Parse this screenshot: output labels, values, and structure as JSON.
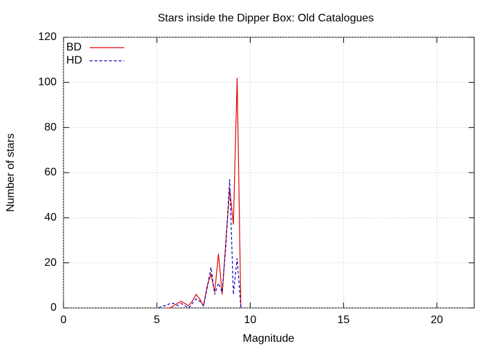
{
  "chart_data": {
    "type": "line",
    "title": "Stars inside the Dipper Box: Old Catalogues",
    "x_label": "Magnitude",
    "y_label": "Number of stars",
    "xlim": [
      0,
      22
    ],
    "xticks": [
      0,
      5,
      10,
      15,
      20
    ],
    "ylim": [
      0,
      120
    ],
    "yticks": [
      0,
      20,
      40,
      60,
      80,
      100,
      120
    ],
    "grid": true,
    "legend": "top-left",
    "series": [
      {
        "name": "BD",
        "color": "#e00000",
        "dash": "solid",
        "x": [
          5.5,
          5.7,
          5.9,
          6.1,
          6.3,
          6.5,
          6.7,
          6.9,
          7.1,
          7.3,
          7.5,
          7.7,
          7.9,
          8.1,
          8.3,
          8.5,
          8.7,
          8.9,
          9.1,
          9.3,
          9.5
        ],
        "values": [
          0,
          0,
          1,
          2,
          3,
          2,
          1,
          3,
          6,
          4,
          1,
          10,
          15,
          7,
          24,
          6,
          30,
          53,
          37,
          102,
          0
        ]
      },
      {
        "name": "HD",
        "color": "#0000c0",
        "dash": "dashed",
        "x": [
          5.1,
          5.3,
          5.5,
          5.7,
          5.9,
          6.1,
          6.3,
          6.5,
          6.7,
          6.9,
          7.1,
          7.3,
          7.5,
          7.7,
          7.9,
          8.1,
          8.3,
          8.5,
          8.7,
          8.9,
          9.1,
          9.3,
          9.5
        ],
        "values": [
          0,
          1,
          1,
          2,
          2,
          1,
          2,
          1,
          0,
          2,
          4,
          3,
          1,
          9,
          18,
          6,
          11,
          7,
          28,
          57,
          6,
          22,
          0
        ]
      }
    ]
  }
}
